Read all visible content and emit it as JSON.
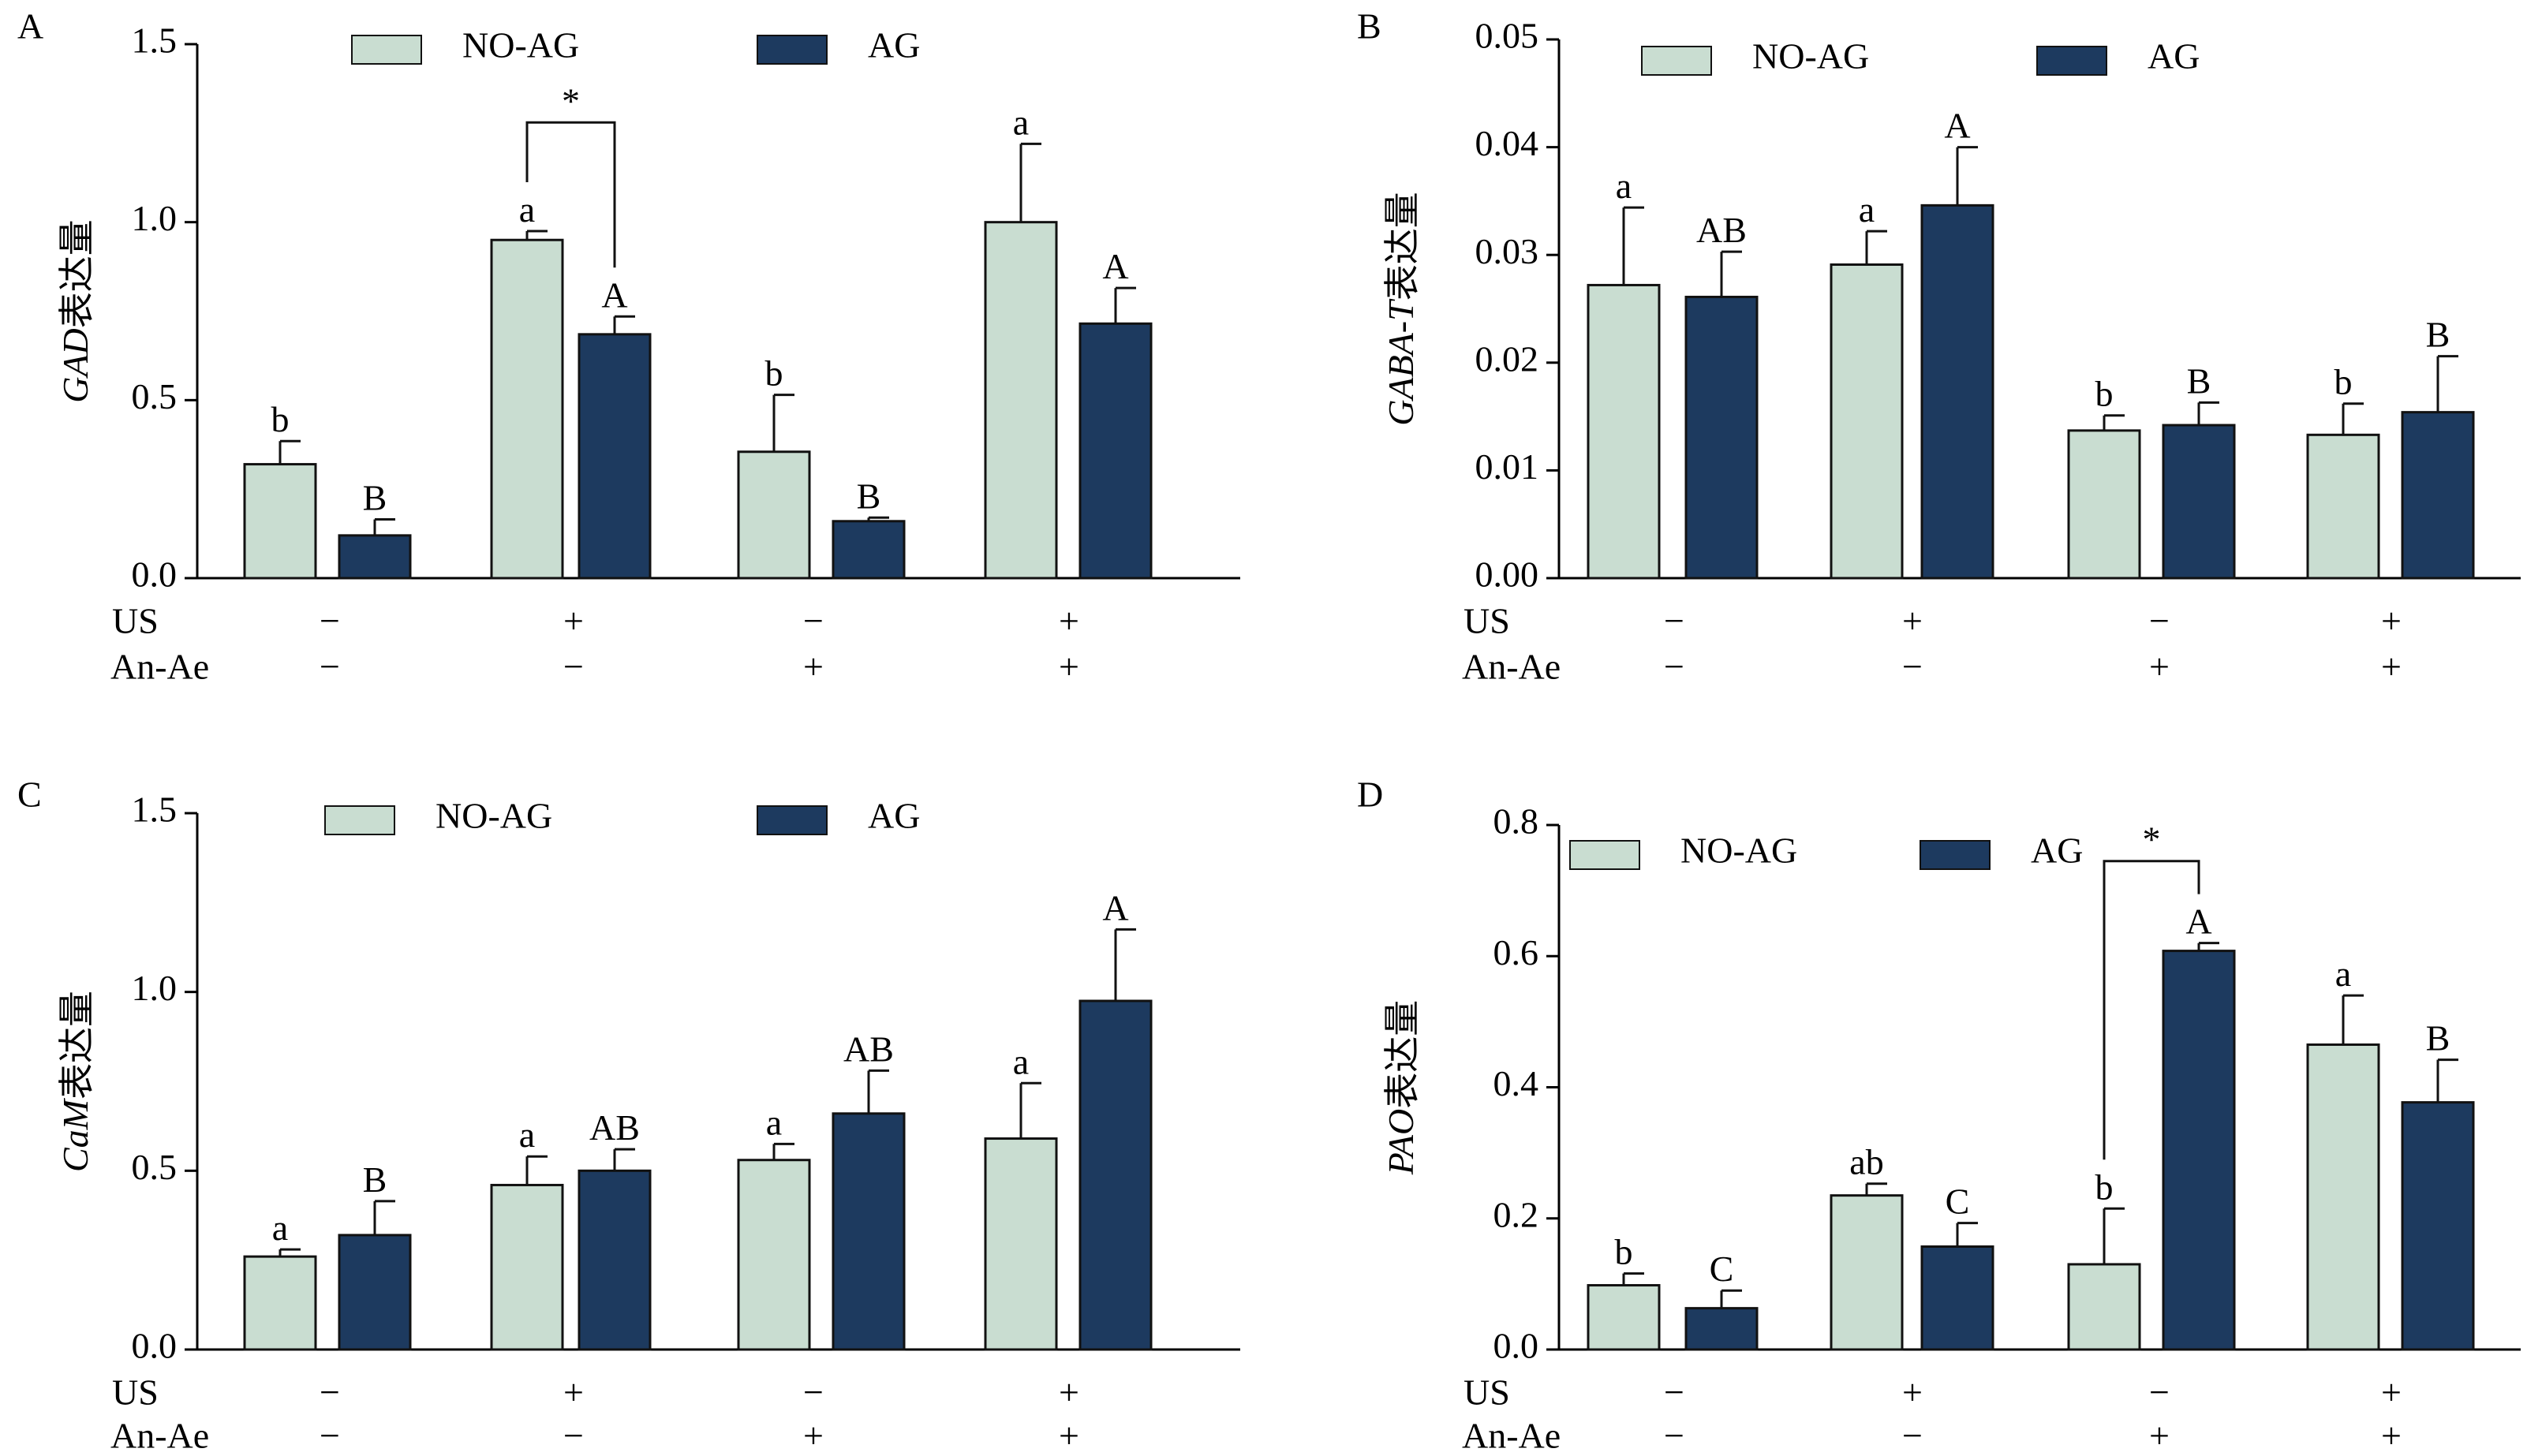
{
  "colors": {
    "no_ag": "#c9ddd1",
    "ag": "#1d3a5f"
  },
  "chart_data": [
    {
      "type": "bar",
      "panel_label": "A",
      "ylabel_italic": "GAD",
      "ylabel_suffix": "表达量",
      "ylim": [
        0,
        1.5
      ],
      "yticks": [
        "0.0",
        "0.5",
        "1.0",
        "1.5"
      ],
      "ytick_values": [
        0,
        0.5,
        1.0,
        1.5
      ],
      "legend": [
        "NO-AG",
        "AG"
      ],
      "series": [
        {
          "name": "NO-AG",
          "values": [
            0.32,
            0.95,
            0.355,
            1.0
          ],
          "errors": [
            0.065,
            0.025,
            0.16,
            0.22
          ],
          "letters": [
            "b",
            "a",
            "b",
            "a"
          ]
        },
        {
          "name": "AG",
          "values": [
            0.12,
            0.685,
            0.16,
            0.715
          ],
          "errors": [
            0.045,
            0.05,
            0.01,
            0.1
          ],
          "letters": [
            "B",
            "A",
            "B",
            "A"
          ]
        }
      ],
      "significance": [
        {
          "group": 1,
          "label": "*",
          "level": 1.28
        }
      ],
      "treatments": {
        "row1_label": "US",
        "row2_label": "An-Ae",
        "row1": [
          "−",
          "+",
          "−",
          "+"
        ],
        "row2": [
          "−",
          "−",
          "+",
          "+"
        ]
      }
    },
    {
      "type": "bar",
      "panel_label": "B",
      "ylabel_italic": "GABA-T",
      "ylabel_suffix": "表达量",
      "ylim": [
        0,
        0.05
      ],
      "yticks": [
        "0.00",
        "0.01",
        "0.02",
        "0.03",
        "0.04",
        "0.05"
      ],
      "ytick_values": [
        0,
        0.01,
        0.02,
        0.03,
        0.04,
        0.05
      ],
      "legend": [
        "NO-AG",
        "AG"
      ],
      "series": [
        {
          "name": "NO-AG",
          "values": [
            0.0272,
            0.0291,
            0.0137,
            0.0133
          ],
          "errors": [
            0.0072,
            0.0031,
            0.0014,
            0.0029
          ],
          "letters": [
            "a",
            "a",
            "b",
            "b"
          ]
        },
        {
          "name": "AG",
          "values": [
            0.0261,
            0.0346,
            0.0142,
            0.0154
          ],
          "errors": [
            0.0042,
            0.0054,
            0.0021,
            0.0052
          ],
          "letters": [
            "AB",
            "A",
            "B",
            "B"
          ]
        }
      ],
      "significance": [],
      "treatments": {
        "row1_label": "US",
        "row2_label": "An-Ae",
        "row1": [
          "−",
          "+",
          "−",
          "+"
        ],
        "row2": [
          "−",
          "−",
          "+",
          "+"
        ]
      }
    },
    {
      "type": "bar",
      "panel_label": "C",
      "ylabel_italic": "CaM",
      "ylabel_suffix": "表达量",
      "ylim": [
        0,
        1.5
      ],
      "yticks": [
        "0.0",
        "0.5",
        "1.0",
        "1.5"
      ],
      "ytick_values": [
        0,
        0.5,
        1.0,
        1.5
      ],
      "legend": [
        "NO-AG",
        "AG"
      ],
      "series": [
        {
          "name": "NO-AG",
          "values": [
            0.26,
            0.46,
            0.53,
            0.59
          ],
          "errors": [
            0.02,
            0.08,
            0.045,
            0.155
          ],
          "letters": [
            "a",
            "a",
            "a",
            "a"
          ]
        },
        {
          "name": "AG",
          "values": [
            0.32,
            0.5,
            0.66,
            0.975
          ],
          "errors": [
            0.095,
            0.06,
            0.12,
            0.2
          ],
          "letters": [
            "B",
            "AB",
            "AB",
            "A"
          ]
        }
      ],
      "significance": [],
      "treatments": {
        "row1_label": "US",
        "row2_label": "An-Ae",
        "row1": [
          "−",
          "+",
          "−",
          "+"
        ],
        "row2": [
          "−",
          "−",
          "+",
          "+"
        ]
      }
    },
    {
      "type": "bar",
      "panel_label": "D",
      "ylabel_italic": "PAO",
      "ylabel_suffix": "表达量",
      "ylim": [
        0,
        0.8
      ],
      "yticks": [
        "0.0",
        "0.2",
        "0.4",
        "0.6",
        "0.8"
      ],
      "ytick_values": [
        0,
        0.2,
        0.4,
        0.6,
        0.8
      ],
      "legend": [
        "NO-AG",
        "AG"
      ],
      "series": [
        {
          "name": "NO-AG",
          "values": [
            0.098,
            0.235,
            0.13,
            0.465
          ],
          "errors": [
            0.018,
            0.018,
            0.085,
            0.075
          ],
          "letters": [
            "b",
            "ab",
            "b",
            "a"
          ]
        },
        {
          "name": "AG",
          "values": [
            0.063,
            0.157,
            0.608,
            0.377
          ],
          "errors": [
            0.027,
            0.036,
            0.012,
            0.065
          ],
          "letters": [
            "C",
            "C",
            "A",
            "B"
          ]
        }
      ],
      "significance": [
        {
          "group": 2,
          "label": "*",
          "level": 0.745
        }
      ],
      "treatments": {
        "row1_label": "US",
        "row2_label": "An-Ae",
        "row1": [
          "−",
          "+",
          "−",
          "+"
        ],
        "row2": [
          "−",
          "−",
          "+",
          "+"
        ]
      }
    }
  ]
}
